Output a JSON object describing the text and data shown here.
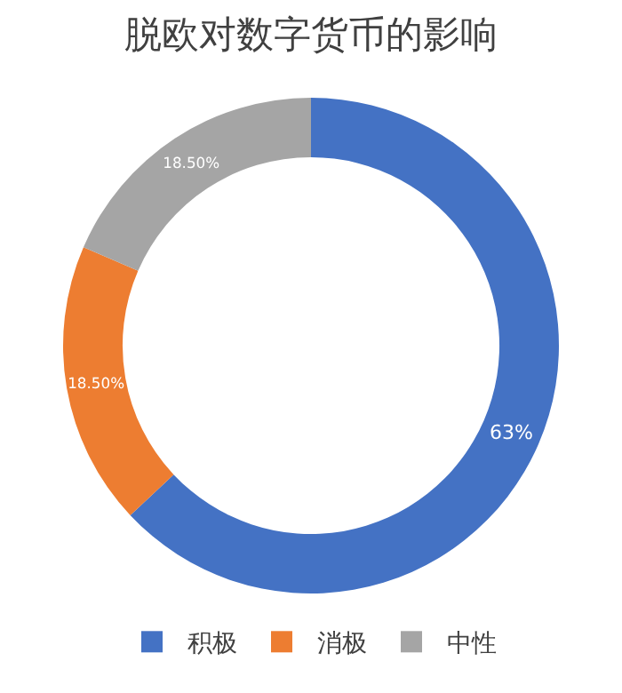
{
  "chart_data": {
    "type": "donut",
    "title": "脱欧对数字货币的影响",
    "categories": [
      "积极",
      "消极",
      "中性"
    ],
    "values": [
      63,
      18.5,
      18.5
    ],
    "value_labels": [
      "63%",
      "18.50%",
      "18.50%"
    ],
    "colors": [
      "#4472c4",
      "#ed7d31",
      "#a5a5a5"
    ],
    "legend": "bottom"
  }
}
